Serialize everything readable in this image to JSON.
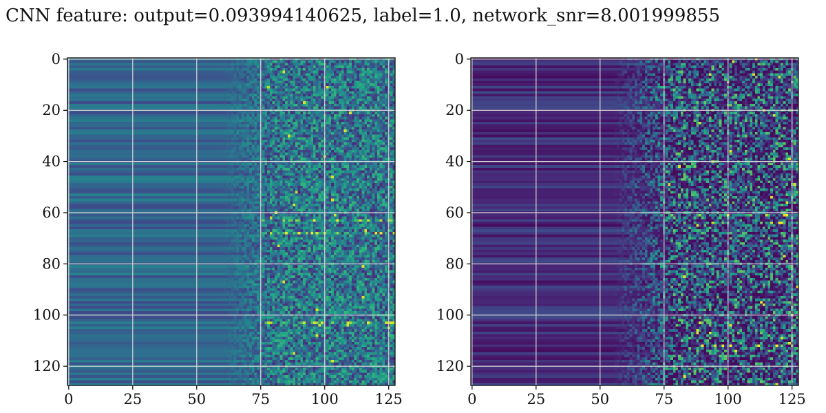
{
  "title": "CNN feature: output=0.093994140625, label=1.0, network_snr=8.001999855",
  "colors": {
    "colormap": "viridis",
    "grid": "#d9d9d9",
    "axis": "#000000"
  },
  "chart_data": [
    {
      "type": "heatmap",
      "panel": "left",
      "rows": 128,
      "cols": 128,
      "xlim": [
        0,
        127
      ],
      "ylim": [
        127,
        0
      ],
      "xticks": [
        0,
        25,
        50,
        75,
        100,
        125
      ],
      "yticks": [
        0,
        20,
        40,
        60,
        80,
        100,
        120
      ],
      "xtick_labels": [
        "0",
        "25",
        "50",
        "75",
        "100",
        "125"
      ],
      "ytick_labels": [
        "0",
        "20",
        "40",
        "60",
        "80",
        "100",
        "120"
      ],
      "grid": true,
      "value_range": [
        0,
        1
      ],
      "structure": "smooth horizontal bands on columns 0-70 (values ~0.25-0.45), noisy speckle on columns 75-127 (values ~0.1-0.9)",
      "hot_rows": [
        63,
        68,
        103
      ]
    },
    {
      "type": "heatmap",
      "panel": "right",
      "rows": 128,
      "cols": 128,
      "xlim": [
        0,
        127
      ],
      "ylim": [
        127,
        0
      ],
      "xticks": [
        0,
        25,
        50,
        75,
        100,
        125
      ],
      "yticks": [
        0,
        20,
        40,
        60,
        80,
        100,
        120
      ],
      "xtick_labels": [
        "0",
        "25",
        "50",
        "75",
        "100",
        "125"
      ],
      "ytick_labels": [
        "0",
        "20",
        "40",
        "60",
        "80",
        "100",
        "120"
      ],
      "grid": true,
      "value_range": [
        0,
        1
      ],
      "structure": "dark smooth bands on columns 0-60 (values ~0.05-0.25), sparse bright speckle on columns 70-127",
      "hot_rows": [
        61,
        64,
        112
      ]
    }
  ]
}
